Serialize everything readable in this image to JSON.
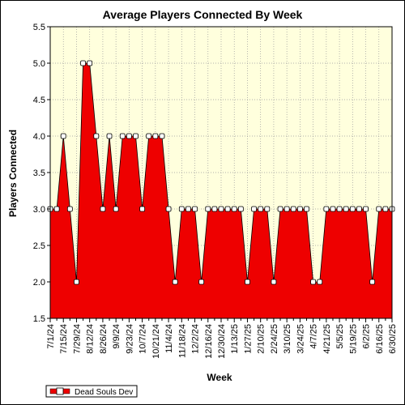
{
  "chart_data": {
    "type": "area",
    "title": "Average Players Connected By Week",
    "xlabel": "Week",
    "ylabel": "Players Connected",
    "ylim": [
      1.5,
      5.5
    ],
    "yticks": [
      "1.5",
      "2.0",
      "2.5",
      "3.0",
      "3.5",
      "4.0",
      "4.5",
      "5.0",
      "5.5"
    ],
    "xtick_labels": [
      "7/1/24",
      "7/15/24",
      "7/29/24",
      "8/12/24",
      "8/26/24",
      "9/9/24",
      "9/23/24",
      "10/7/24",
      "10/21/24",
      "11/4/24",
      "11/18/24",
      "12/2/24",
      "12/16/24",
      "12/30/24",
      "1/13/25",
      "1/27/25",
      "2/10/25",
      "2/24/25",
      "3/10/25",
      "3/24/25",
      "4/7/25",
      "4/21/25",
      "5/5/25",
      "5/19/25",
      "6/2/25",
      "6/16/25",
      "6/30/25"
    ],
    "series": [
      {
        "name": "Dead Souls Dev",
        "color": "#ee0000",
        "values": [
          3.0,
          3.0,
          4.0,
          3.0,
          2.0,
          5.0,
          5.0,
          4.0,
          3.0,
          4.0,
          3.0,
          4.0,
          4.0,
          4.0,
          3.0,
          4.0,
          4.0,
          4.0,
          3.0,
          2.0,
          3.0,
          3.0,
          3.0,
          2.0,
          3.0,
          3.0,
          3.0,
          3.0,
          3.0,
          3.0,
          2.0,
          3.0,
          3.0,
          3.0,
          2.0,
          3.0,
          3.0,
          3.0,
          3.0,
          3.0,
          2.0,
          2.0,
          3.0,
          3.0,
          3.0,
          3.0,
          3.0,
          3.0,
          3.0,
          2.0,
          3.0,
          3.0,
          3.0
        ]
      }
    ],
    "grid": true,
    "legend": "bottom-left"
  }
}
